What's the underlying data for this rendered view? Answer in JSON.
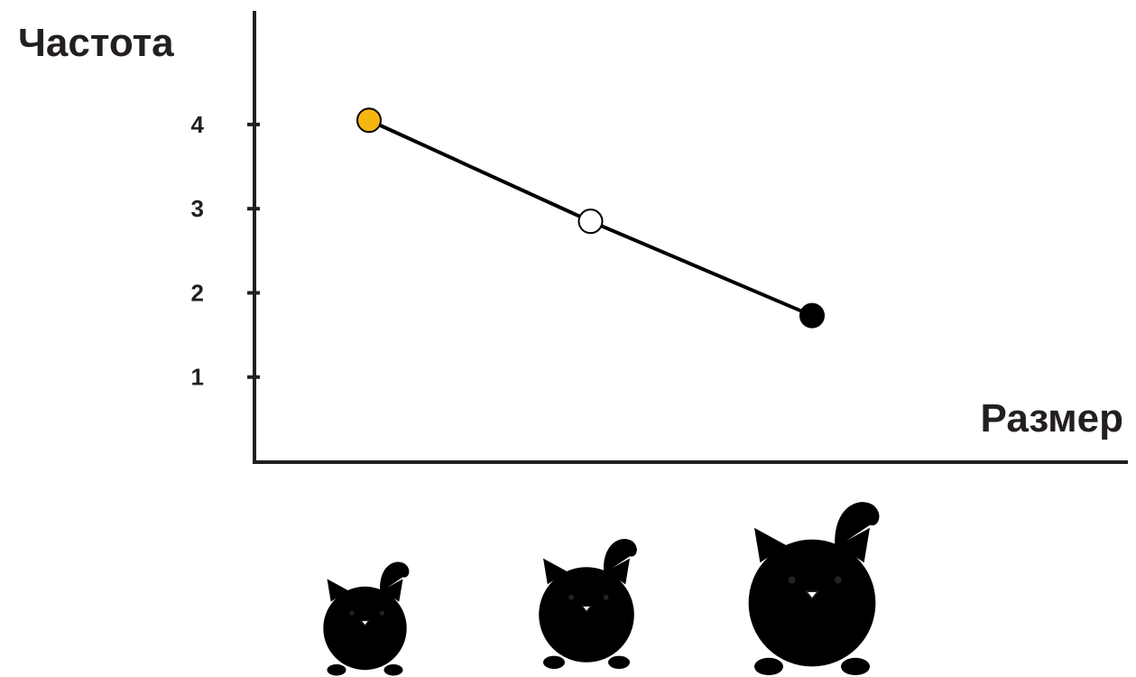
{
  "chart_data": {
    "type": "line",
    "y_label": "Частота",
    "x_label": "Размер",
    "categories": [
      null,
      null,
      null
    ],
    "values": [
      4.05,
      2.85,
      1.73
    ],
    "color": "#000000",
    "marker_colors": [
      "#f7b512",
      "#ffffff",
      "#000000"
    ],
    "ylim": [
      0,
      5.35
    ],
    "yticks": [
      1,
      2,
      3,
      4
    ]
  }
}
